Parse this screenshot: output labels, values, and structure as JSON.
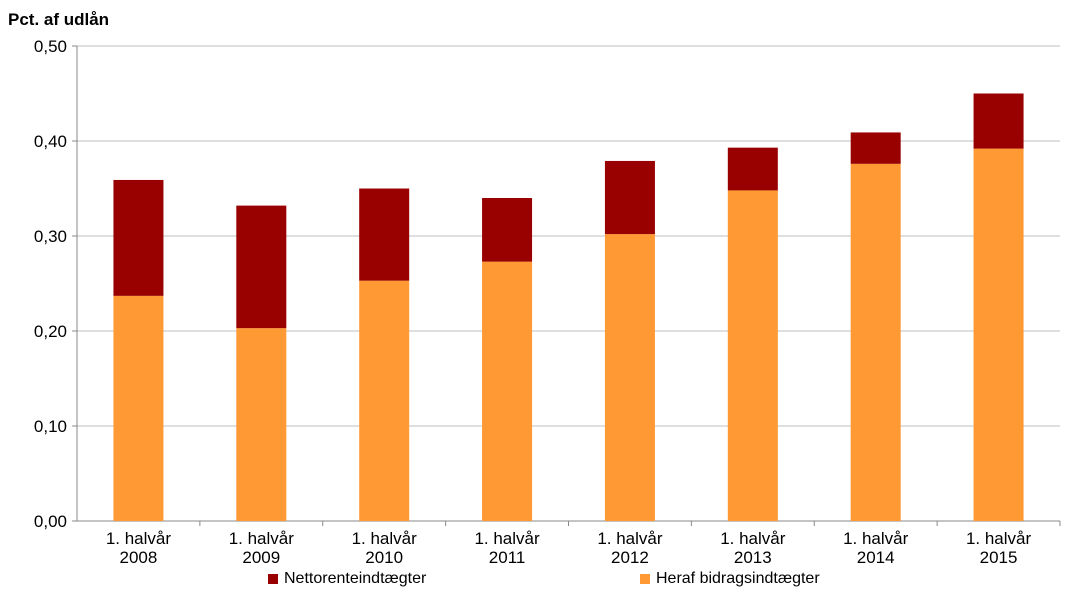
{
  "chart_data": {
    "type": "bar",
    "stacked": true,
    "ylabel": "Pct. af udlån",
    "xlabel": "",
    "ylim": [
      0,
      0.5
    ],
    "yticks": [
      "0,00",
      "0,10",
      "0,20",
      "0,30",
      "0,40",
      "0,50"
    ],
    "grid": true,
    "legend_position": "bottom",
    "categories": [
      [
        "1. halvår",
        "2008"
      ],
      [
        "1. halvår",
        "2009"
      ],
      [
        "1. halvår",
        "2010"
      ],
      [
        "1. halvår",
        "2011"
      ],
      [
        "1. halvår",
        "2012"
      ],
      [
        "1. halvår",
        "2013"
      ],
      [
        "1. halvår",
        "2014"
      ],
      [
        "1. halvår",
        "2015"
      ]
    ],
    "series": [
      {
        "name": "Heraf bidragsindtægter",
        "color": "#FF9933",
        "values": [
          0.237,
          0.203,
          0.253,
          0.273,
          0.302,
          0.348,
          0.376,
          0.392
        ]
      },
      {
        "name": "Nettorenteindtægter",
        "color": "#990000",
        "total_values": [
          0.359,
          0.332,
          0.35,
          0.34,
          0.379,
          0.393,
          0.409,
          0.45
        ]
      }
    ]
  }
}
